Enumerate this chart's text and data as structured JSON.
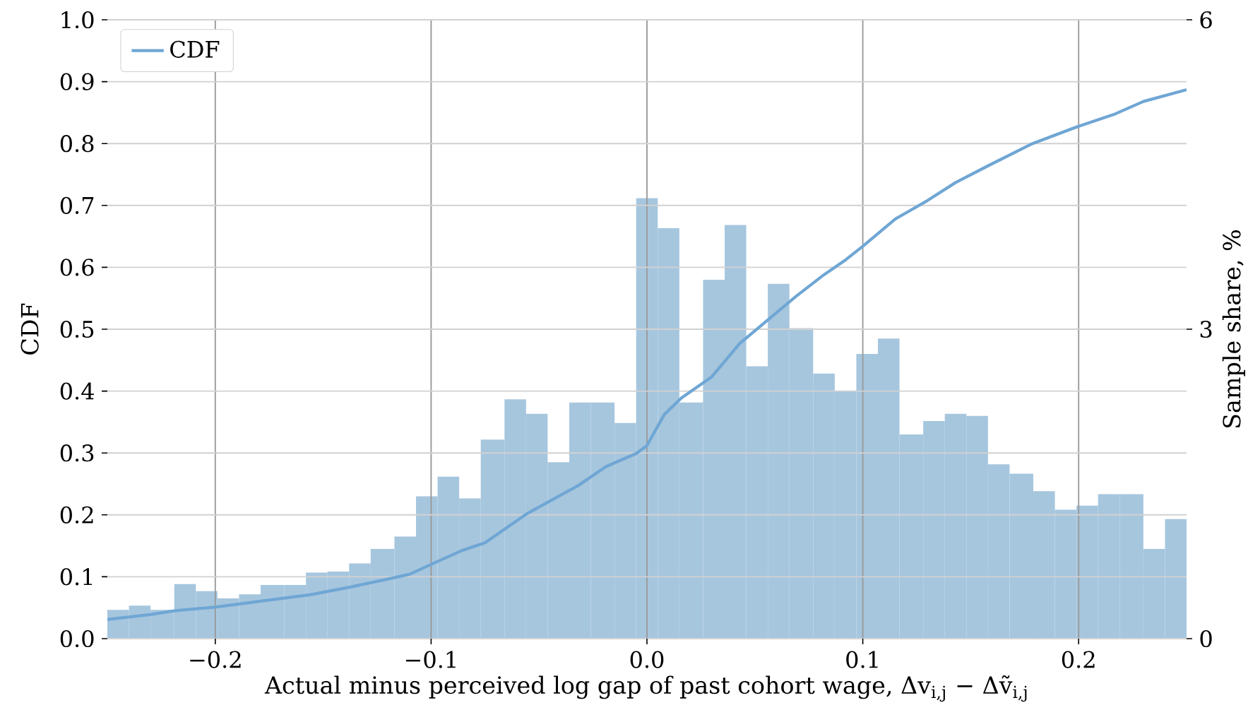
{
  "chart_data": {
    "type": "histogram",
    "xlabel": "Actual minus perceived log gap of past cohort wage, Δv$_{i,j}$ − Δṽ$_{i,j}$",
    "ylabel": "CDF",
    "y2label": "Sample share, %",
    "xlim": [
      -0.25,
      0.25
    ],
    "xticks": [
      {
        "value": -0.2,
        "label": "−0.2"
      },
      {
        "value": -0.1,
        "label": "−0.1"
      },
      {
        "value": 0,
        "label": "0.0"
      },
      0.1,
      0.2
    ],
    "ylim": [
      0,
      1
    ],
    "yticks": [
      {
        "value": 0,
        "label": "0.0"
      },
      0.1,
      0.2,
      0.3,
      0.4,
      0.5,
      0.6,
      0.7,
      0.8,
      0.9,
      {
        "value": 1,
        "label": "1.0"
      }
    ],
    "y2lim": [
      0,
      6
    ],
    "y2ticks": [
      0,
      3,
      6
    ],
    "grid": true,
    "legend": "top left",
    "series": [
      {
        "axis": "y2",
        "color": "#a6c6de",
        "bins": [
          -0.25,
          -0.24,
          -0.23,
          -0.219,
          -0.209,
          -0.199,
          -0.189,
          -0.179,
          -0.168,
          -0.158,
          -0.148,
          -0.138,
          -0.128,
          -0.117,
          -0.107,
          -0.097,
          -0.087,
          -0.077,
          -0.066,
          -0.056,
          -0.046,
          -0.036,
          -0.026,
          -0.015,
          -0.005,
          0.005,
          0.015,
          0.026,
          0.036,
          0.046,
          0.056,
          0.066,
          0.077,
          0.087,
          0.097,
          0.107,
          0.117,
          0.128,
          0.138,
          0.148,
          0.158,
          0.168,
          0.179,
          0.189,
          0.199,
          0.209,
          0.219,
          0.23,
          0.24,
          0.25
        ],
        "values": [
          0.28,
          0.32,
          0.28,
          0.53,
          0.46,
          0.39,
          0.43,
          0.52,
          0.52,
          0.64,
          0.65,
          0.73,
          0.87,
          0.99,
          1.38,
          1.57,
          1.36,
          1.93,
          2.32,
          2.18,
          1.71,
          2.29,
          2.29,
          2.09,
          4.27,
          3.98,
          2.29,
          3.48,
          4.01,
          2.64,
          3.44,
          3.01,
          2.57,
          2.4,
          2.76,
          2.91,
          1.98,
          2.11,
          2.18,
          2.16,
          1.69,
          1.6,
          1.43,
          1.25,
          1.29,
          1.4,
          1.4,
          0.87,
          1.16
        ]
      },
      {
        "type": "line",
        "name": "CDF",
        "color": "#6fa6d4",
        "x": [
          -0.25,
          -0.23,
          -0.219,
          -0.2,
          -0.18,
          -0.156,
          -0.138,
          -0.123,
          -0.11,
          -0.1,
          -0.086,
          -0.075,
          -0.056,
          -0.04,
          -0.032,
          -0.019,
          -0.005,
          0.0,
          0.008,
          0.016,
          0.03,
          0.043,
          0.056,
          0.069,
          0.082,
          0.092,
          0.1,
          0.115,
          0.13,
          0.143,
          0.158,
          0.178,
          0.2,
          0.217,
          0.23,
          0.25
        ],
        "values": [
          0.031,
          0.039,
          0.045,
          0.051,
          0.06,
          0.071,
          0.083,
          0.094,
          0.104,
          0.12,
          0.142,
          0.155,
          0.201,
          0.232,
          0.247,
          0.278,
          0.299,
          0.312,
          0.362,
          0.389,
          0.423,
          0.477,
          0.515,
          0.553,
          0.588,
          0.612,
          0.634,
          0.678,
          0.708,
          0.737,
          0.764,
          0.799,
          0.828,
          0.848,
          0.868,
          0.887
        ]
      }
    ]
  }
}
